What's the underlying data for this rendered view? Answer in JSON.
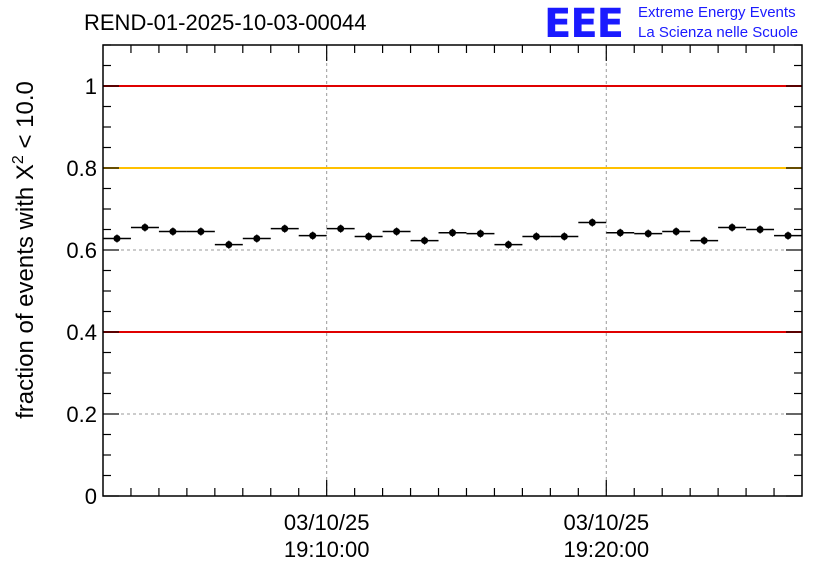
{
  "header": {
    "title": "REND-01-2025-10-03-00044"
  },
  "logo": {
    "mark": "EEE",
    "line1": "Extreme Energy Events",
    "line2": "La Scienza nelle Scuole",
    "color": "#1a1aff"
  },
  "chart_data": {
    "type": "scatter",
    "title": "REND-01-2025-10-03-00044",
    "ylabel_text": "fraction of events with X",
    "ylabel_sup": "2",
    "ylabel_tail": " < 10.0",
    "ylim": [
      0,
      1.1
    ],
    "yticks": [
      0,
      0.2,
      0.4,
      0.6,
      0.8,
      1
    ],
    "ytick_labels": [
      "0",
      "0.2",
      "0.4",
      "0.6",
      "0.8",
      "1"
    ],
    "xlim": [
      0,
      25
    ],
    "x_tick_labels": [
      {
        "x": 8,
        "date": "03/10/25",
        "time": "19:10:00"
      },
      {
        "x": 18,
        "date": "03/10/25",
        "time": "19:20:00"
      }
    ],
    "reference_lines": [
      {
        "y": 1.0,
        "color": "#e00000"
      },
      {
        "y": 0.8,
        "color": "#ffc000"
      },
      {
        "y": 0.4,
        "color": "#e00000"
      }
    ],
    "grid": true,
    "points": [
      {
        "x": 0.5,
        "y": 0.628
      },
      {
        "x": 1.5,
        "y": 0.655
      },
      {
        "x": 2.5,
        "y": 0.645
      },
      {
        "x": 3.5,
        "y": 0.645
      },
      {
        "x": 4.5,
        "y": 0.613
      },
      {
        "x": 5.5,
        "y": 0.628
      },
      {
        "x": 6.5,
        "y": 0.652
      },
      {
        "x": 7.5,
        "y": 0.635
      },
      {
        "x": 8.5,
        "y": 0.652
      },
      {
        "x": 9.5,
        "y": 0.633
      },
      {
        "x": 10.5,
        "y": 0.645
      },
      {
        "x": 11.5,
        "y": 0.623
      },
      {
        "x": 12.5,
        "y": 0.642
      },
      {
        "x": 13.5,
        "y": 0.64
      },
      {
        "x": 14.5,
        "y": 0.613
      },
      {
        "x": 15.5,
        "y": 0.633
      },
      {
        "x": 16.5,
        "y": 0.633
      },
      {
        "x": 17.5,
        "y": 0.667
      },
      {
        "x": 18.5,
        "y": 0.642
      },
      {
        "x": 19.5,
        "y": 0.64
      },
      {
        "x": 20.5,
        "y": 0.645
      },
      {
        "x": 21.5,
        "y": 0.623
      },
      {
        "x": 22.5,
        "y": 0.655
      },
      {
        "x": 23.5,
        "y": 0.65
      },
      {
        "x": 24.5,
        "y": 0.635
      }
    ],
    "point_color": "#000000"
  }
}
